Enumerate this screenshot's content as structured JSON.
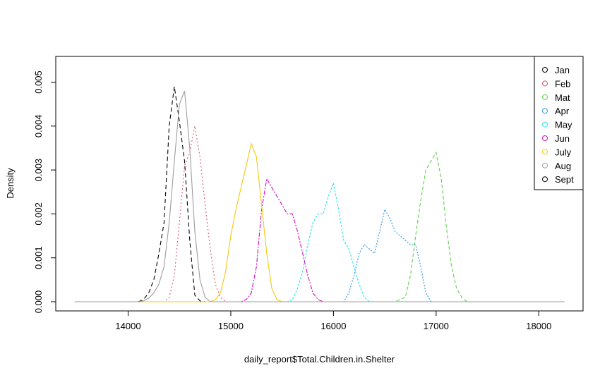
{
  "chart_data": {
    "type": "line",
    "title": "",
    "xlabel": "daily_report$Total.Children.in.Shelter",
    "ylabel": "Density",
    "xlim": [
      13450,
      18250
    ],
    "ylim": [
      -0.0002,
      0.0055
    ],
    "x_ticks": [
      14000,
      15000,
      16000,
      17000,
      18000
    ],
    "x_tick_labels": [
      "14000",
      "15000",
      "16000",
      "17000",
      "18000"
    ],
    "y_ticks": [
      0,
      0.001,
      0.002,
      0.003,
      0.004,
      0.005
    ],
    "y_tick_labels": [
      "0.000",
      "0.001",
      "0.002",
      "0.003",
      "0.004",
      "0.005"
    ],
    "grid": false,
    "legend_position": "top-right",
    "series": [
      {
        "name": "Jan",
        "color": "#000000",
        "dash": "6,4",
        "x": [
          13480,
          14100,
          14150,
          14200,
          14250,
          14300,
          14350,
          14400,
          14450,
          14500,
          14550,
          14600,
          14650,
          14700,
          14750,
          18250
        ],
        "y": [
          0,
          0,
          5e-05,
          0.0002,
          0.0005,
          0.0011,
          0.0018,
          0.004,
          0.0049,
          0.0041,
          0.0032,
          0.0014,
          0.00015,
          2e-05,
          0,
          0
        ]
      },
      {
        "name": "Feb",
        "color": "#DF536B",
        "dash": "2,3",
        "x": [
          13480,
          14350,
          14400,
          14450,
          14500,
          14550,
          14600,
          14650,
          14700,
          14750,
          14800,
          14850,
          14900,
          14950,
          18250
        ],
        "y": [
          0,
          0,
          0.0001,
          0.0006,
          0.0018,
          0.0031,
          0.0034,
          0.004,
          0.0033,
          0.0022,
          0.0012,
          0.0004,
          0.0001,
          0,
          0
        ]
      },
      {
        "name": "Mat",
        "color": "#61D04F",
        "dash": "5,3",
        "x": [
          13480,
          16600,
          16700,
          16750,
          16800,
          16850,
          16900,
          16950,
          17000,
          17050,
          17100,
          17150,
          17200,
          17250,
          17300,
          18250
        ],
        "y": [
          0,
          0,
          0.0001,
          0.0006,
          0.0015,
          0.0023,
          0.003,
          0.0032,
          0.0034,
          0.0028,
          0.0017,
          0.0008,
          0.0003,
          0.0001,
          0,
          0
        ]
      },
      {
        "name": "Apr",
        "color": "#2297E6",
        "dash": "2,2",
        "x": [
          13480,
          16100,
          16150,
          16200,
          16250,
          16300,
          16350,
          16400,
          16450,
          16500,
          16550,
          16600,
          16650,
          16700,
          16750,
          16800,
          16850,
          16900,
          16950,
          18250
        ],
        "y": [
          0,
          0,
          0.0002,
          0.0006,
          0.0011,
          0.0013,
          0.0012,
          0.0011,
          0.0016,
          0.0021,
          0.0019,
          0.0016,
          0.0015,
          0.0014,
          0.0013,
          0.0013,
          0.0008,
          0.0002,
          0,
          0
        ]
      },
      {
        "name": "May",
        "color": "#28E2E5",
        "dash": "3,2",
        "x": [
          13480,
          15550,
          15600,
          15650,
          15700,
          15750,
          15800,
          15850,
          15900,
          15950,
          16000,
          16050,
          16100,
          16150,
          16200,
          16250,
          16300,
          16350,
          18250
        ],
        "y": [
          0,
          0,
          5e-05,
          0.0003,
          0.0007,
          0.0013,
          0.0018,
          0.002,
          0.002,
          0.0024,
          0.0027,
          0.0021,
          0.0014,
          0.0012,
          0.0008,
          0.0004,
          0.0001,
          0,
          0
        ]
      },
      {
        "name": "Jun",
        "color": "#CD0BBC",
        "dash": "6,2,2,2",
        "x": [
          13480,
          15100,
          15150,
          15200,
          15250,
          15300,
          15350,
          15400,
          15450,
          15500,
          15550,
          15600,
          15650,
          15700,
          15750,
          15800,
          15850,
          15900,
          18250
        ],
        "y": [
          0,
          0,
          5e-05,
          0.0002,
          0.0008,
          0.0021,
          0.0028,
          0.0026,
          0.0024,
          0.0022,
          0.002,
          0.002,
          0.0016,
          0.0011,
          0.0006,
          0.0002,
          5e-05,
          0,
          0
        ]
      },
      {
        "name": "July",
        "color": "#F5C710",
        "dash": "",
        "x": [
          13480,
          14800,
          14850,
          14900,
          14950,
          15000,
          15050,
          15100,
          15150,
          15200,
          15250,
          15300,
          15350,
          15400,
          15450,
          15500,
          18250
        ],
        "y": [
          0,
          0,
          5e-05,
          0.0002,
          0.0007,
          0.0015,
          0.0021,
          0.0026,
          0.0031,
          0.0036,
          0.0033,
          0.0022,
          0.0011,
          0.0003,
          5e-05,
          0,
          0
        ]
      },
      {
        "name": "Aug",
        "color": "#9E9E9E",
        "dash": "",
        "x": [
          13480,
          14100,
          14150,
          14200,
          14250,
          14300,
          14350,
          14400,
          14450,
          14500,
          14550,
          14600,
          14650,
          14700,
          14750,
          14800,
          18250
        ],
        "y": [
          0,
          0,
          2e-05,
          8e-05,
          0.0002,
          0.0004,
          0.0008,
          0.0018,
          0.0032,
          0.0045,
          0.0048,
          0.0035,
          0.0016,
          0.0005,
          0.0001,
          0,
          0
        ]
      },
      {
        "name": "Sept",
        "color": "#000000",
        "dash": "",
        "x": [],
        "y": []
      }
    ]
  }
}
